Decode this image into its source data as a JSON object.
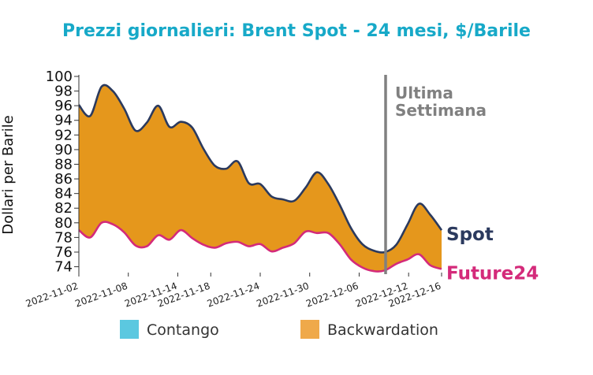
{
  "colors": {
    "title": "#17a9c8",
    "spot": "#2b3a5e",
    "future": "#d42a7a",
    "backwardation": "#e5971c",
    "contango": "#5bc8e0",
    "legend_backwardation": "#efa94a",
    "marker": "#808080"
  },
  "chart_data": {
    "type": "area",
    "title": "Prezzi giornalieri: Brent Spot - 24 mesi, $/Barile",
    "ylabel": "Dollari per Barile",
    "xlabel": "",
    "ylim": [
      73.2,
      100
    ],
    "yticks": [
      74,
      76,
      78,
      80,
      82,
      84,
      86,
      88,
      90,
      92,
      94,
      96,
      98,
      100
    ],
    "xlim": [
      "2022-11-02",
      "2022-12-16"
    ],
    "xticks": [
      "2022-11-02",
      "2022-11-08",
      "2022-11-14",
      "2022-11-18",
      "2022-11-24",
      "2022-11-30",
      "2022-12-06",
      "2022-12-12",
      "2022-12-16"
    ],
    "x": [
      "2022-11-02",
      "2022-11-03",
      "2022-11-04",
      "2022-11-05",
      "2022-11-06",
      "2022-11-07",
      "2022-11-08",
      "2022-11-09",
      "2022-11-10",
      "2022-11-11",
      "2022-11-12",
      "2022-11-13",
      "2022-11-14",
      "2022-11-15",
      "2022-11-16",
      "2022-11-17",
      "2022-11-18",
      "2022-11-19",
      "2022-11-20",
      "2022-11-21",
      "2022-11-22",
      "2022-11-23",
      "2022-11-24",
      "2022-11-25",
      "2022-11-26",
      "2022-11-27",
      "2022-11-28",
      "2022-11-29",
      "2022-11-30",
      "2022-12-01",
      "2022-12-02",
      "2022-12-03",
      "2022-12-04",
      "2022-12-05",
      "2022-12-06",
      "2022-12-07",
      "2022-12-08",
      "2022-12-09",
      "2022-12-10",
      "2022-12-11",
      "2022-12-12",
      "2022-12-13",
      "2022-12-14",
      "2022-12-15",
      "2022-12-16"
    ],
    "series": [
      {
        "name": "Spot",
        "values": [
          96.1,
          94.6,
          98.6,
          98.0,
          95.6,
          92.6,
          93.7,
          96.0,
          93.1,
          93.8,
          93.0,
          90.1,
          87.8,
          87.4,
          88.4,
          85.4,
          85.3,
          83.6,
          83.2,
          83.0,
          84.8,
          86.9,
          85.3,
          82.5,
          79.3,
          77.1,
          76.2,
          76.0,
          77.0,
          79.8,
          82.6,
          81.1,
          79.0,
          null,
          null,
          null,
          null,
          null,
          null,
          null,
          null,
          null,
          null,
          null,
          null
        ]
      },
      {
        "name": "Future24",
        "values": [
          79.0,
          78.0,
          80.0,
          79.8,
          78.7,
          76.9,
          76.8,
          78.3,
          77.7,
          79.0,
          77.9,
          77.0,
          76.6,
          77.2,
          77.4,
          76.8,
          77.1,
          76.1,
          76.6,
          77.2,
          78.8,
          78.6,
          78.6,
          77.1,
          75.0,
          73.9,
          73.4,
          73.5,
          74.4,
          75.0,
          75.7,
          74.2,
          73.7,
          null,
          null,
          null,
          null,
          null,
          null,
          null,
          null,
          null,
          null,
          null,
          null
        ]
      }
    ],
    "x_index_note_dates": [
      "2022-11-02",
      "2022-12-16"
    ],
    "marker_label": "Ultima\nSettimana",
    "legend": [
      {
        "name": "Contango",
        "color": "#5bc8e0"
      },
      {
        "name": "Backwardation",
        "color": "#efa94a"
      }
    ],
    "legend_position": "bottom"
  }
}
